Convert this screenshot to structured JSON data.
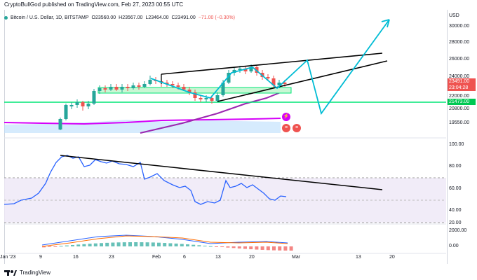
{
  "header": {
    "text": "CryptoBullGod published on TradingView.com, Feb 27, 2023 00:55 UTC"
  },
  "legend": {
    "symbol": "Bitcoin / U.S. Dollar, 1D, BITSTAMP",
    "open": "O23560.00",
    "high": "H23567.00",
    "low": "L23464.00",
    "close": "C23491.00",
    "change": "−71.00 (−0.30%)"
  },
  "price_axis": {
    "unit": "USD",
    "ticks": [
      "30000.00",
      "28000.00",
      "26000.00",
      "24000.00",
      "22000.00",
      "20800.00",
      "19550.00"
    ],
    "current_price": "23491.00",
    "countdown": "23:04:28",
    "support_label": "21473.00"
  },
  "rsi_axis": {
    "ticks": [
      "100.00",
      "80.00",
      "60.00",
      "40.00",
      "20.00"
    ]
  },
  "macd_axis": {
    "ticks": [
      "2000.00",
      "0.00"
    ]
  },
  "time_axis": {
    "labels": [
      "Jan '23",
      "9",
      "16",
      "23",
      "Feb",
      "6",
      "13",
      "20",
      "Mar",
      "13",
      "20"
    ]
  },
  "footer": {
    "brand": "TradingView"
  },
  "colors": {
    "up": "#26a69a",
    "down": "#ef5350",
    "support": "#00e676",
    "projection": "#00bcd4",
    "ma": "#9c27b0",
    "ma2": "#d500f9"
  }
}
